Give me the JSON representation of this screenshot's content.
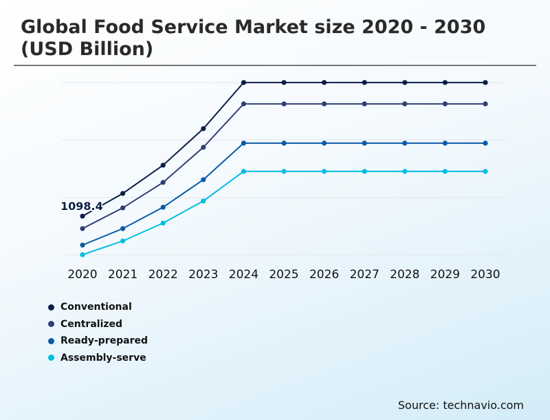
{
  "title": "Global Food Service Market size 2020 - 2030 (USD Billion)",
  "source": "Source: technavio.com",
  "chart_data": {
    "type": "line",
    "title": "Global Food Service Market size 2020 - 2030 (USD Billion)",
    "xlabel": "",
    "ylabel": "",
    "categories": [
      "2020",
      "2021",
      "2022",
      "2023",
      "2024",
      "2025",
      "2026",
      "2027",
      "2028",
      "2029",
      "2030"
    ],
    "ylim": [
      0,
      4900
    ],
    "grid": true,
    "y_tick_labels_shown": false,
    "legend_position": "bottom-left",
    "series": [
      {
        "name": "Conventional",
        "color": "#0b1f45",
        "values": [
          1098.4,
          1745,
          2549,
          3589,
          4903,
          4903,
          4903,
          4903,
          4903,
          4903,
          4903
        ]
      },
      {
        "name": "Centralized",
        "color": "#2f3f74",
        "values": [
          745,
          1334,
          2059,
          3059,
          4295,
          4295,
          4295,
          4295,
          4295,
          4295,
          4295
        ]
      },
      {
        "name": "Ready-prepared",
        "color": "#0b5aa6",
        "values": [
          275,
          745,
          1353,
          2138,
          3177,
          3177,
          3177,
          3177,
          3177,
          3177,
          3177
        ]
      },
      {
        "name": "Assembly-serve",
        "color": "#00bde0",
        "values": [
          0,
          392,
          902,
          1530,
          2373,
          2373,
          2373,
          2373,
          2373,
          2373,
          2373
        ]
      }
    ],
    "annotations": [
      {
        "series": "Conventional",
        "category": "2020",
        "text": "1098.4"
      }
    ]
  }
}
